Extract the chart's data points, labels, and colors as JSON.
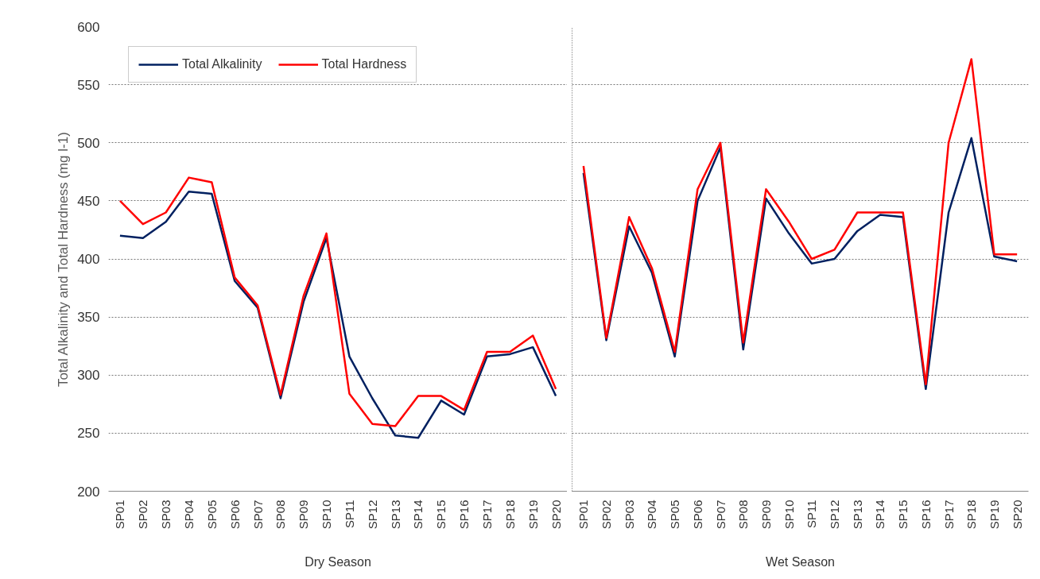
{
  "chart_data": [
    {
      "type": "line",
      "ylabel": "Total Alkalinity and Total Hardness (mg l-1)",
      "annotations": [
        "Dry Season"
      ],
      "categories": [
        "SP01",
        "SP02",
        "SP03",
        "SP04",
        "SP05",
        "SP06",
        "SP07",
        "SP08",
        "SP09",
        "SP10",
        "SP11",
        "SP12",
        "SP13",
        "SP14",
        "SP15",
        "SP16",
        "SP17",
        "SP18",
        "SP19",
        "SP20"
      ],
      "series": [
        {
          "name": "Total Alkalinity",
          "color": "#002060",
          "values": [
            420,
            418,
            432,
            458,
            456,
            381,
            358,
            280,
            363,
            418,
            316,
            280,
            248,
            246,
            278,
            266,
            316,
            318,
            324,
            282
          ]
        },
        {
          "name": "Total Hardness",
          "color": "#ff0000",
          "values": [
            450,
            430,
            440,
            470,
            466,
            384,
            360,
            283,
            368,
            422,
            284,
            258,
            256,
            282,
            282,
            270,
            320,
            320,
            334,
            288
          ]
        }
      ],
      "ylim": [
        200,
        600
      ],
      "yticks": [
        200,
        250,
        300,
        350,
        400,
        450,
        500,
        550,
        600
      ],
      "grid": "y",
      "legend": "top left"
    },
    {
      "type": "line",
      "annotations": [
        "Wet Season"
      ],
      "categories": [
        "SP01",
        "SP02",
        "SP03",
        "SP04",
        "SP05",
        "SP06",
        "SP07",
        "SP08",
        "SP09",
        "SP10",
        "SP11",
        "SP12",
        "SP13",
        "SP14",
        "SP15",
        "SP16",
        "SP17",
        "SP18",
        "SP19",
        "SP20"
      ],
      "series": [
        {
          "color": "#002060",
          "values": [
            474,
            330,
            428,
            388,
            316,
            450,
            496,
            322,
            452,
            422,
            396,
            400,
            424,
            438,
            436,
            288,
            440,
            504,
            402,
            398
          ]
        },
        {
          "color": "#ff0000",
          "values": [
            480,
            332,
            436,
            392,
            320,
            460,
            500,
            328,
            460,
            432,
            400,
            408,
            440,
            440,
            440,
            292,
            500,
            572,
            404,
            404
          ]
        }
      ],
      "ylim": [
        200,
        600
      ],
      "yticks": [
        200,
        250,
        300,
        350,
        400,
        450,
        500,
        550,
        600
      ],
      "grid": "y",
      "tick_labels": "x"
    }
  ]
}
